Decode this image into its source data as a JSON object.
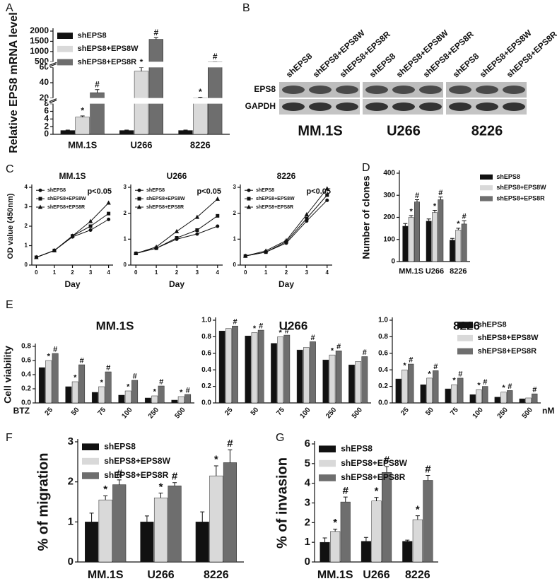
{
  "panel_labels": [
    "A",
    "B",
    "C",
    "D",
    "E",
    "F",
    "G"
  ],
  "blot": {
    "lane_labels": [
      "shEPS8",
      "shEPS8+EPS8W",
      "shEPS8+EPS8R",
      "shEPS8",
      "shEPS8+EPS8W",
      "shEPS8+EPS8R",
      "shEPS8",
      "shEPS8+EPS8W",
      "shEPS8+EPS8R"
    ],
    "rows": [
      "EPS8",
      "GAPDH"
    ],
    "cell_lines": [
      "MM.1S",
      "U266",
      "8226"
    ]
  },
  "chart_data": [
    {
      "type": "bar",
      "ylabel": "Relative EPS8 mRNA level",
      "categories": [
        "MM.1S",
        "U266",
        "8226"
      ],
      "series": [
        {
          "name": "shEPS8",
          "color": "#111111",
          "values": [
            1,
            1,
            1
          ],
          "errors": [
            0.1,
            0.1,
            0.1
          ]
        },
        {
          "name": "shEPS8+EPS8W",
          "color": "#d9d9d9",
          "values": [
            4.5,
            55,
            20
          ],
          "errors": [
            0.3,
            5,
            1
          ],
          "markers": [
            "*",
            "*",
            "*"
          ]
        },
        {
          "name": "shEPS8+EPS8R",
          "color": "#6e6e6e",
          "values": [
            27,
            1600,
            460
          ],
          "errors": [
            4,
            80,
            40
          ],
          "markers": [
            "#",
            "#",
            "#"
          ]
        }
      ],
      "ylim": [
        0,
        2000
      ],
      "axis_breaks": [
        [
          8,
          20
        ],
        [
          60,
          500
        ]
      ],
      "yticks": [
        0,
        2,
        4,
        6,
        8,
        20,
        40,
        60,
        500,
        1000,
        1500,
        2000
      ],
      "legend": "upper left"
    },
    {
      "type": "line",
      "title": "MM.1S",
      "xlabel": "Day",
      "ylabel": "OD value (450nm)",
      "annotation": "p<0.05",
      "legend": "upper left",
      "x": [
        0,
        1,
        2,
        3,
        4
      ],
      "xlim": [
        -0.25,
        4.25
      ],
      "xticks": [
        0,
        1,
        2,
        3,
        4
      ],
      "ylim": [
        0,
        4
      ],
      "yticks": [
        0,
        1,
        2,
        3,
        4
      ],
      "series": [
        {
          "name": "shEPS8",
          "color": "#111111",
          "marker": "circle",
          "values": [
            0.4,
            0.75,
            1.45,
            1.8,
            2.35
          ]
        },
        {
          "name": "shEPS8+EPS8W",
          "color": "#111111",
          "marker": "square",
          "values": [
            0.4,
            0.75,
            1.5,
            2.0,
            2.65
          ]
        },
        {
          "name": "shEPS8+EPS8R",
          "color": "#111111",
          "marker": "triangle",
          "values": [
            0.4,
            0.75,
            1.5,
            2.25,
            3.2
          ]
        }
      ]
    },
    {
      "type": "line",
      "title": "U266",
      "xlabel": "Day",
      "annotation": "p<0.05",
      "legend": "upper left",
      "x": [
        0,
        1,
        2,
        3,
        4
      ],
      "xlim": [
        -0.25,
        4.25
      ],
      "xticks": [
        0,
        1,
        2,
        3,
        4
      ],
      "ylim": [
        0,
        3
      ],
      "yticks": [
        0,
        1,
        2,
        3
      ],
      "series": [
        {
          "name": "shEPS8",
          "color": "#111111",
          "marker": "circle",
          "values": [
            0.45,
            0.65,
            1.0,
            1.2,
            1.5
          ]
        },
        {
          "name": "shEPS8+EPS8W",
          "color": "#111111",
          "marker": "square",
          "values": [
            0.45,
            0.65,
            1.05,
            1.35,
            1.9
          ]
        },
        {
          "name": "shEPS8+EPS8R",
          "color": "#111111",
          "marker": "triangle",
          "values": [
            0.45,
            0.7,
            1.3,
            1.85,
            2.55
          ]
        }
      ]
    },
    {
      "type": "line",
      "title": "8226",
      "xlabel": "Day",
      "annotation": "p<0.05",
      "legend": "upper left",
      "x": [
        0,
        1,
        2,
        3,
        4
      ],
      "xlim": [
        -0.25,
        4.25
      ],
      "xticks": [
        0,
        1,
        2,
        3,
        4
      ],
      "ylim": [
        0,
        3
      ],
      "yticks": [
        0,
        1,
        2,
        3
      ],
      "series": [
        {
          "name": "shEPS8",
          "color": "#111111",
          "marker": "circle",
          "values": [
            0.35,
            0.5,
            0.85,
            1.7,
            2.5
          ]
        },
        {
          "name": "shEPS8+EPS8W",
          "color": "#111111",
          "marker": "square",
          "values": [
            0.35,
            0.5,
            0.9,
            1.8,
            2.7
          ]
        },
        {
          "name": "shEPS8+EPS8R",
          "color": "#111111",
          "marker": "triangle",
          "values": [
            0.35,
            0.55,
            0.95,
            1.95,
            2.95
          ]
        }
      ]
    },
    {
      "type": "bar",
      "ylabel": "Number of clones",
      "categories": [
        "MM.1S",
        "U266",
        "8226"
      ],
      "legend": "right",
      "ylim": [
        0,
        400
      ],
      "yticks": [
        0,
        100,
        200,
        300,
        400
      ],
      "series": [
        {
          "name": "shEPS8",
          "color": "#111111",
          "values": [
            160,
            183,
            97
          ],
          "errors": [
            12,
            10,
            8
          ]
        },
        {
          "name": "shEPS8+EPS8W",
          "color": "#d9d9d9",
          "values": [
            200,
            222,
            143
          ],
          "errors": [
            8,
            10,
            8
          ],
          "markers": [
            "*",
            "*",
            "*"
          ]
        },
        {
          "name": "shEPS8+EPS8R",
          "color": "#6e6e6e",
          "values": [
            270,
            280,
            170
          ],
          "errors": [
            10,
            12,
            15
          ],
          "markers": [
            "#",
            "#",
            "#"
          ]
        }
      ]
    },
    {
      "type": "bar",
      "title": "MM.1S",
      "ylabel": "Cell viability",
      "xlabel": "BTZ",
      "categories": [
        "25",
        "50",
        "75",
        "100",
        "250",
        "500"
      ],
      "ylim": [
        0,
        0.8
      ],
      "yticks": [
        {
          "value": 0,
          "label": "0.0"
        },
        {
          "value": 0.2,
          "label": "0.2"
        },
        {
          "value": 0.4,
          "label": "0.4"
        },
        {
          "value": 0.6,
          "label": "0.6"
        },
        {
          "value": 0.8,
          "label": "0.8"
        }
      ],
      "series": [
        {
          "color": "#111111",
          "values": [
            0.5,
            0.23,
            0.15,
            0.11,
            0.07,
            0.04
          ]
        },
        {
          "color": "#d9d9d9",
          "values": [
            0.6,
            0.3,
            0.23,
            0.17,
            0.1,
            0.09
          ],
          "markers": [
            "*",
            "*",
            "*",
            "*",
            "*",
            "*"
          ]
        },
        {
          "color": "#6e6e6e",
          "values": [
            0.7,
            0.54,
            0.44,
            0.32,
            0.24,
            0.12
          ],
          "markers": [
            "#",
            "#",
            "#",
            "#",
            "#",
            "#"
          ]
        }
      ]
    },
    {
      "type": "bar",
      "title": "U266",
      "categories": [
        "25",
        "50",
        "75",
        "100",
        "250",
        "500"
      ],
      "ylim": [
        0,
        1.0
      ],
      "yticks": [
        {
          "value": 0,
          "label": "0.0"
        },
        {
          "value": 0.2,
          "label": "0.2"
        },
        {
          "value": 0.4,
          "label": "0.4"
        },
        {
          "value": 0.6,
          "label": "0.6"
        },
        {
          "value": 0.8,
          "label": "0.8"
        },
        {
          "value": 1.0,
          "label": "1.0"
        }
      ],
      "series": [
        {
          "color": "#111111",
          "values": [
            0.87,
            0.81,
            0.72,
            0.64,
            0.52,
            0.46
          ]
        },
        {
          "color": "#d9d9d9",
          "values": [
            0.9,
            0.85,
            0.8,
            0.67,
            0.58,
            0.5
          ],
          "markers": [
            null,
            "*",
            "*",
            null,
            "*",
            null
          ]
        },
        {
          "color": "#6e6e6e",
          "values": [
            0.93,
            0.88,
            0.82,
            0.74,
            0.63,
            0.56
          ],
          "markers": [
            "#",
            "#",
            "#",
            "#",
            "#",
            "#"
          ]
        }
      ]
    },
    {
      "type": "bar",
      "title": "8226",
      "xlabel_right": "nM",
      "categories": [
        "25",
        "50",
        "75",
        "100",
        "250",
        "500"
      ],
      "legend": "upper right",
      "ylim": [
        0,
        1.0
      ],
      "yticks": [
        {
          "value": 0,
          "label": "0.0"
        },
        {
          "value": 0.2,
          "label": "0.2"
        },
        {
          "value": 0.4,
          "label": "0.4"
        },
        {
          "value": 0.6,
          "label": "0.6"
        },
        {
          "value": 0.8,
          "label": "0.8"
        },
        {
          "value": 1.0,
          "label": "1.0"
        }
      ],
      "series": [
        {
          "name": "shEPS8",
          "color": "#111111",
          "values": [
            0.29,
            0.22,
            0.17,
            0.1,
            0.07,
            0.05
          ]
        },
        {
          "name": "shEPS8+EPS8W",
          "color": "#d9d9d9",
          "values": [
            0.4,
            0.3,
            0.22,
            0.16,
            0.13,
            0.06
          ],
          "markers": [
            "*",
            "*",
            "*",
            "*",
            "*",
            null
          ]
        },
        {
          "name": "shEPS8+EPS8R",
          "color": "#6e6e6e",
          "values": [
            0.47,
            0.39,
            0.3,
            0.2,
            0.15,
            0.11
          ],
          "markers": [
            "#",
            "#",
            "#",
            "#",
            "#",
            "#"
          ]
        }
      ]
    },
    {
      "type": "bar",
      "ylabel": "% of migration",
      "categories": [
        "MM.1S",
        "U266",
        "8226"
      ],
      "legend": "upper left",
      "ylim": [
        0,
        3
      ],
      "yticks": [
        0,
        1,
        2,
        3
      ],
      "series": [
        {
          "name": "shEPS8",
          "color": "#111111",
          "values": [
            1.0,
            1.0,
            1.0
          ],
          "errors": [
            0.22,
            0.15,
            0.25
          ]
        },
        {
          "name": "shEPS8+EPS8W",
          "color": "#d9d9d9",
          "values": [
            1.55,
            1.6,
            2.15
          ],
          "errors": [
            0.1,
            0.12,
            0.25
          ],
          "markers": [
            "*",
            "*",
            "*"
          ]
        },
        {
          "name": "shEPS8+EPS8R",
          "color": "#6e6e6e",
          "values": [
            1.93,
            1.9,
            2.48
          ],
          "errors": [
            0.12,
            0.08,
            0.32
          ],
          "markers": [
            "#",
            "#",
            "#"
          ]
        }
      ]
    },
    {
      "type": "bar",
      "ylabel": "% of invasion",
      "categories": [
        "MM.1S",
        "U266",
        "8226"
      ],
      "legend": "upper left",
      "ylim": [
        0,
        6
      ],
      "yticks": [
        0,
        1,
        2,
        3,
        4,
        5,
        6
      ],
      "series": [
        {
          "name": "shEPS8",
          "color": "#111111",
          "values": [
            1.0,
            1.05,
            1.05
          ],
          "errors": [
            0.22,
            0.2,
            0.06
          ]
        },
        {
          "name": "shEPS8+EPS8W",
          "color": "#d9d9d9",
          "values": [
            1.55,
            3.1,
            2.15
          ],
          "errors": [
            0.12,
            0.18,
            0.2
          ],
          "markers": [
            "*",
            "*",
            "*"
          ]
        },
        {
          "name": "shEPS8+EPS8R",
          "color": "#6e6e6e",
          "values": [
            3.05,
            4.55,
            4.15
          ],
          "errors": [
            0.25,
            0.3,
            0.25
          ],
          "markers": [
            "#",
            "#",
            "#"
          ]
        }
      ]
    }
  ]
}
